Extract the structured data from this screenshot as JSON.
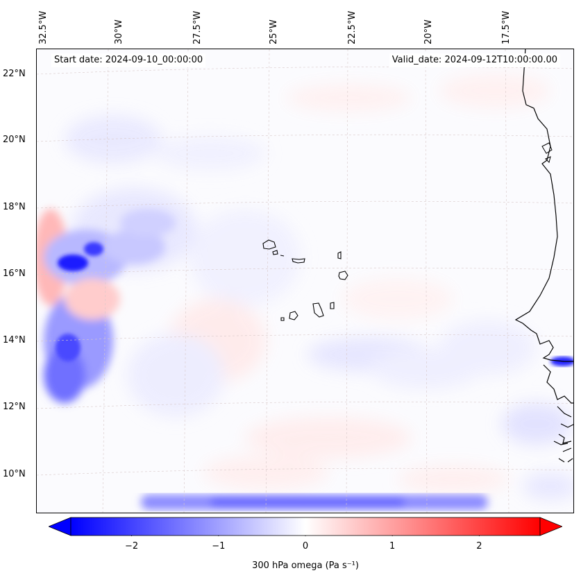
{
  "map": {
    "start_date_label": "Start date: 2024-09-10_00:00:00",
    "valid_date_label": "Valid_date: 2024-09-12T10:00:00.00",
    "lon_labels": [
      "32.5°W",
      "30°W",
      "27.5°W",
      "25°W",
      "22.5°W",
      "20°W",
      "17.5°W"
    ],
    "lat_labels": [
      "22°N",
      "20°N",
      "18°N",
      "16°N",
      "14°N",
      "12°N",
      "10°N"
    ],
    "colors": {
      "negative": "#0000ff",
      "neutral": "#ffffff",
      "positive": "#ff0000",
      "coast": "#000000"
    }
  },
  "colorbar": {
    "label": "300 hPa omega (Pa s⁻¹)",
    "ticks": [
      "−2",
      "−1",
      "0",
      "1",
      "2"
    ],
    "range": [
      -2.7,
      2.7
    ],
    "tick_values": [
      -2,
      -1,
      0,
      1,
      2
    ]
  }
}
